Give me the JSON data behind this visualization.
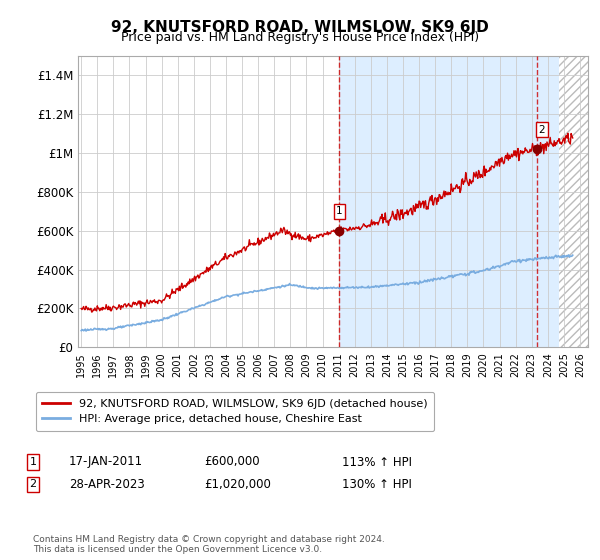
{
  "title": "92, KNUTSFORD ROAD, WILMSLOW, SK9 6JD",
  "subtitle": "Price paid vs. HM Land Registry's House Price Index (HPI)",
  "ylim": [
    0,
    1500000
  ],
  "yticks": [
    0,
    200000,
    400000,
    600000,
    800000,
    1000000,
    1200000,
    1400000
  ],
  "ytick_labels": [
    "£0",
    "£200K",
    "£400K",
    "£600K",
    "£800K",
    "£1M",
    "£1.2M",
    "£1.4M"
  ],
  "xlim_start": 1994.8,
  "xlim_end": 2026.5,
  "xticks": [
    1995,
    1996,
    1997,
    1998,
    1999,
    2000,
    2001,
    2002,
    2003,
    2004,
    2005,
    2006,
    2007,
    2008,
    2009,
    2010,
    2011,
    2012,
    2013,
    2014,
    2015,
    2016,
    2017,
    2018,
    2019,
    2020,
    2021,
    2022,
    2023,
    2024,
    2025,
    2026
  ],
  "red_line_color": "#cc0000",
  "blue_line_color": "#7aade0",
  "marker1_x": 2011.05,
  "marker1_y": 600000,
  "marker2_x": 2023.33,
  "marker2_y": 1020000,
  "vline1_x": 2011.05,
  "vline2_x": 2023.33,
  "shade_start": 2011.05,
  "shade_end": 2026.5,
  "shade_color": "#ddeeff",
  "hatch_region_start": 2024.67,
  "legend_entries": [
    "92, KNUTSFORD ROAD, WILMSLOW, SK9 6JD (detached house)",
    "HPI: Average price, detached house, Cheshire East"
  ],
  "annotation1_label": "1",
  "annotation1_date": "17-JAN-2011",
  "annotation1_price": "£600,000",
  "annotation1_hpi": "113% ↑ HPI",
  "annotation2_label": "2",
  "annotation2_date": "28-APR-2023",
  "annotation2_price": "£1,020,000",
  "annotation2_hpi": "130% ↑ HPI",
  "footer": "Contains HM Land Registry data © Crown copyright and database right 2024.\nThis data is licensed under the Open Government Licence v3.0.",
  "bg_color": "#ffffff",
  "plot_bg_color": "#ffffff",
  "grid_color": "#cccccc"
}
